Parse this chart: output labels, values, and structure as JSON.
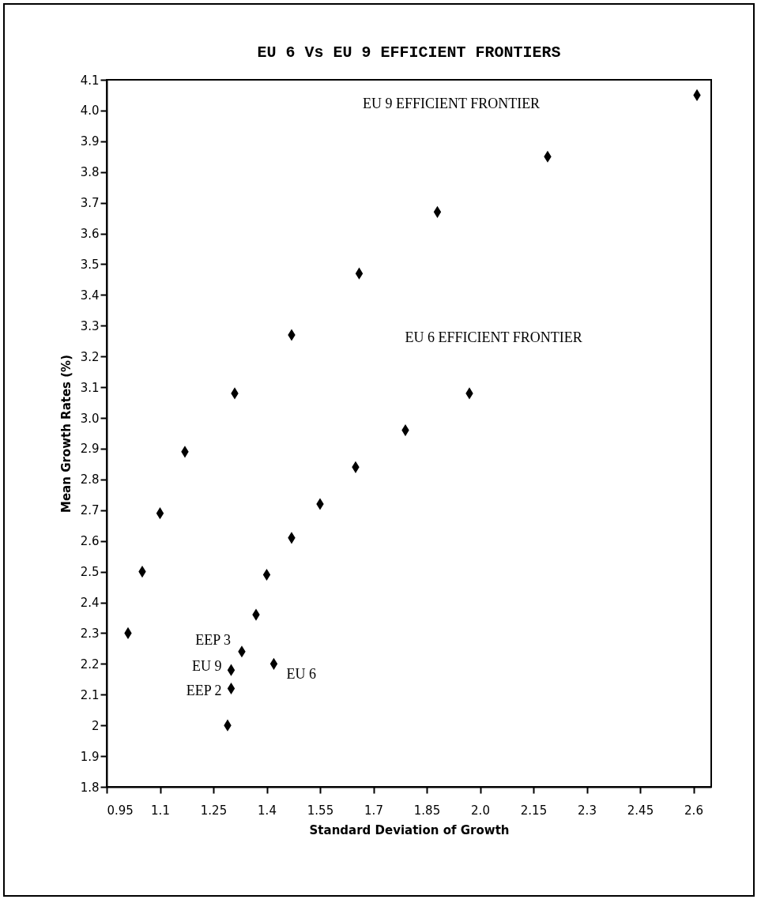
{
  "chart_data": {
    "type": "scatter",
    "title": "EU 6 Vs EU 9 EFFICIENT FRONTIERS",
    "xlabel": "Standard Deviation of Growth",
    "ylabel": "Mean Growth Rates (%)",
    "series": [
      {
        "color": "#000000",
        "x": [
          1.01,
          1.05,
          1.1,
          1.17,
          1.31,
          1.47,
          1.66,
          1.88,
          2.19,
          2.61
        ],
        "values": [
          2.3,
          2.5,
          2.69,
          2.89,
          3.08,
          3.27,
          3.47,
          3.67,
          3.85,
          4.05
        ]
      },
      {
        "color": "#000000",
        "x": [
          1.29,
          1.37,
          1.4,
          1.47,
          1.55,
          1.65,
          1.79,
          1.97
        ],
        "values": [
          2.0,
          2.36,
          2.49,
          2.61,
          2.72,
          2.84,
          2.96,
          3.08
        ]
      },
      {
        "color": "#000000",
        "x": [
          1.3,
          1.3,
          1.33,
          1.42
        ],
        "values": [
          2.12,
          2.18,
          2.24,
          2.2
        ]
      }
    ],
    "annotations": [
      "EU 9 EFFICIENT FRONTIER",
      "EU 6 EFFICIENT FRONTIER",
      {
        "text": "EEP 3",
        "x": 1.33,
        "y": 2.24
      },
      {
        "text": "EU 9",
        "x": 1.3,
        "y": 2.18
      },
      {
        "text": "EEP 2",
        "x": 1.3,
        "y": 2.12
      },
      {
        "text": "EU 6",
        "x": 1.42,
        "y": 2.2
      }
    ],
    "xlim": [
      0.95,
      2.65
    ],
    "xticks": [
      0.95,
      1.1,
      1.25,
      1.4,
      1.55,
      1.7,
      1.85,
      {
        "value": 2,
        "label": "2.0"
      },
      2.15,
      2.3,
      2.45,
      2.6
    ],
    "ylim": [
      1.8,
      4.1
    ],
    "yticks": [
      1.8,
      1.9,
      2,
      2.1,
      2.2,
      2.3,
      2.4,
      2.5,
      2.6,
      2.7,
      2.8,
      2.9,
      {
        "value": 3,
        "label": "3.0"
      },
      3.1,
      3.2,
      3.3,
      3.4,
      3.5,
      3.6,
      3.7,
      3.8,
      3.9,
      {
        "value": 4,
        "label": "4.0"
      },
      4.1
    ],
    "grid": false,
    "marker": "diamond"
  }
}
